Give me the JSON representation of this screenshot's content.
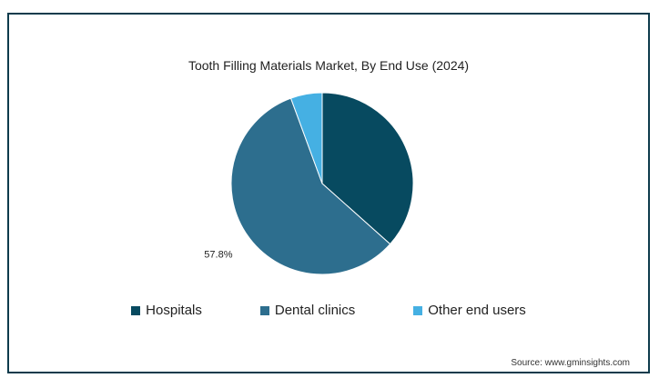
{
  "chart_data": {
    "type": "pie",
    "title": "Tooth Filling Materials Market, By End Use (2024)",
    "categories": [
      "Hospitals",
      "Dental clinics",
      "Other end users"
    ],
    "values": [
      36.6,
      57.8,
      5.6
    ],
    "colors": [
      "#074a60",
      "#2d6e8e",
      "#45b0e3"
    ],
    "data_labels": [
      "",
      "57.8%",
      ""
    ],
    "legend_position": "bottom"
  },
  "source": "Source: www.gminsights.com"
}
